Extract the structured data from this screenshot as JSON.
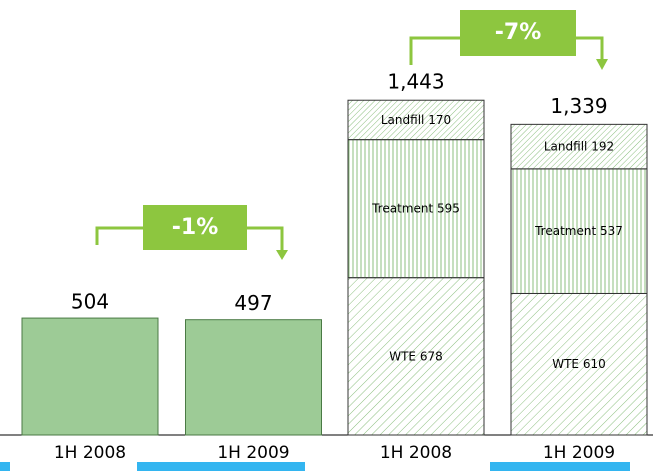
{
  "chart_data": [
    {
      "type": "bar",
      "categories": [
        "1H 2008",
        "1H 2009"
      ],
      "values": [
        504,
        497
      ],
      "color": "#9dcb96",
      "ylim": [
        0,
        1500
      ],
      "annotation": "-1%"
    },
    {
      "type": "stacked_bar",
      "categories": [
        "1H 2008",
        "1H 2009"
      ],
      "series": [
        {
          "name": "WTE",
          "color": "#8cbf7f",
          "values": [
            678,
            610
          ]
        },
        {
          "name": "Treatment",
          "color": "#8cbf7f",
          "values": [
            595,
            537
          ]
        },
        {
          "name": "Landfill",
          "color": "#8cbf7f",
          "values": [
            170,
            192
          ]
        }
      ],
      "totals": [
        1443,
        1339
      ],
      "total_labels": [
        "1,443",
        "1,339"
      ],
      "ylim": [
        0,
        1500
      ],
      "annotation": "-7%"
    }
  ]
}
